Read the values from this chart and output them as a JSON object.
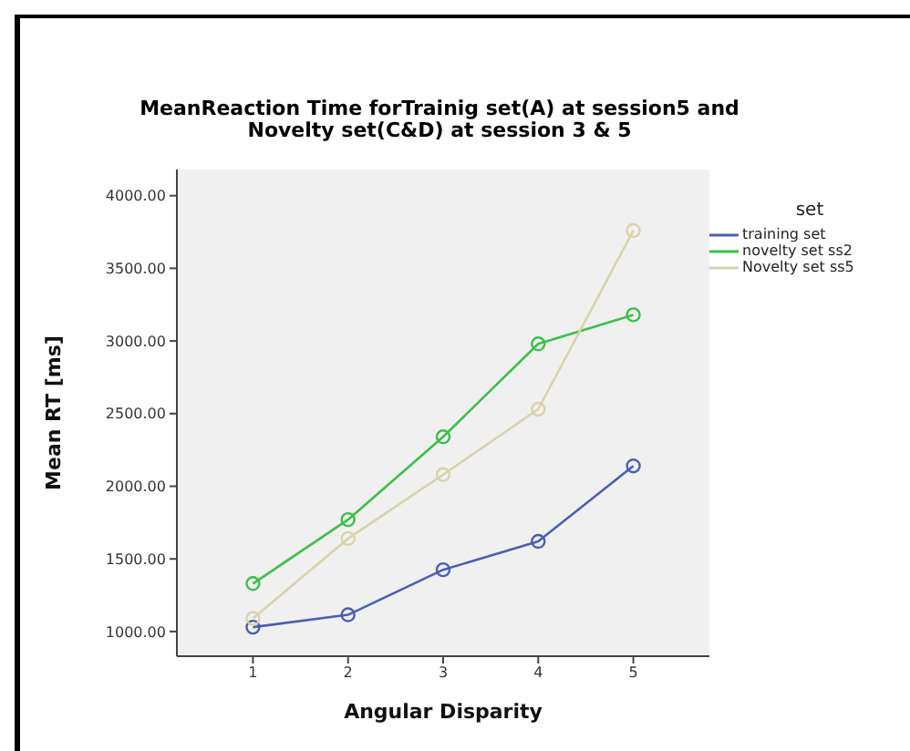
{
  "chart_data": {
    "type": "line",
    "title": "MeanReaction Time forTrainig set(A) at session5 and\nNovelty set(C&D) at session 3 & 5",
    "xlabel": "Angular Disparity",
    "ylabel": "Mean RT [ms]",
    "legend_title": "set",
    "x": [
      1,
      2,
      3,
      4,
      5
    ],
    "xlim": [
      0.2,
      5.8
    ],
    "xticks": [
      1,
      2,
      3,
      4,
      5
    ],
    "ylim": [
      830,
      4180
    ],
    "yticks": [
      {
        "value": 1000,
        "label": "1000.00"
      },
      {
        "value": 1500,
        "label": "1500.00"
      },
      {
        "value": 2000,
        "label": "2000.00"
      },
      {
        "value": 2500,
        "label": "2500.00"
      },
      {
        "value": 3000,
        "label": "3000.00"
      },
      {
        "value": 3500,
        "label": "3500.00"
      },
      {
        "value": 4000,
        "label": "4000.00"
      }
    ],
    "grid": false,
    "legend": "right",
    "marker": "circle",
    "line_style": "solid",
    "series": [
      {
        "name": "training set",
        "color": "#4a5fb0",
        "values": [
          1030,
          1115,
          1425,
          1620,
          2140
        ]
      },
      {
        "name": "novelty set ss2",
        "color": "#3cbf4a",
        "values": [
          1330,
          1770,
          2340,
          2980,
          3180
        ]
      },
      {
        "name": "Novelty set ss5",
        "color": "#d9d3a8",
        "values": [
          1090,
          1640,
          2080,
          2530,
          3760
        ]
      }
    ]
  }
}
